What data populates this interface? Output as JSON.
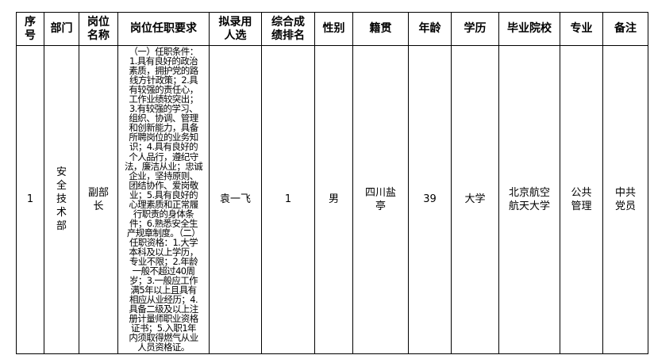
{
  "headers": [
    "序号",
    "部门",
    "岗位名称",
    "岗位任职要求",
    "拟录用人选",
    "综合成绩排名",
    "性别",
    "籍贯",
    "年龄",
    "学历",
    "毕业院校",
    "专业",
    "备注"
  ],
  "row": {
    "index": "1",
    "department": "安全技术部",
    "position": "副部长",
    "requirements": [
      "（一）任职条件：",
      "1.具有良好的政治",
      "素质，拥护党的路",
      "线方针政策；2.具",
      "有较强的责任心，",
      "工作业绩较突出；",
      "3.有较强的学习、",
      "组织、协调、管理",
      "和创新能力，具备",
      "所聘岗位的业务知",
      "识；4.具有良好的",
      "个人品行，遵纪守",
      "法，廉洁从业；忠诚",
      "企业，坚持原则、",
      "团结协作、爱岗敬",
      "业；5.具有良好的",
      "心理素质和正常履",
      "行职责的身体条",
      "件；6.熟悉安全生",
      "产规章制度。（二）",
      "任职资格：1.大学",
      "本科及以上学历，",
      "专业不限；2.年龄",
      "一般不超过40周",
      "岁；3.一般应工作",
      "满5年以上且具有",
      "相应从业经历；4.",
      "具备二级及以上注",
      "册计量师职业资格",
      "证书；5.入职1年",
      "内须取得燃气从业",
      "人员资格证。"
    ],
    "candidate": "袁一飞",
    "rank": "1",
    "gender": "男",
    "origin": "四川盐亭",
    "age": "39",
    "education": "大学",
    "school": "北京航空航天大学",
    "major": "公共管理",
    "remark": "中共党员"
  }
}
